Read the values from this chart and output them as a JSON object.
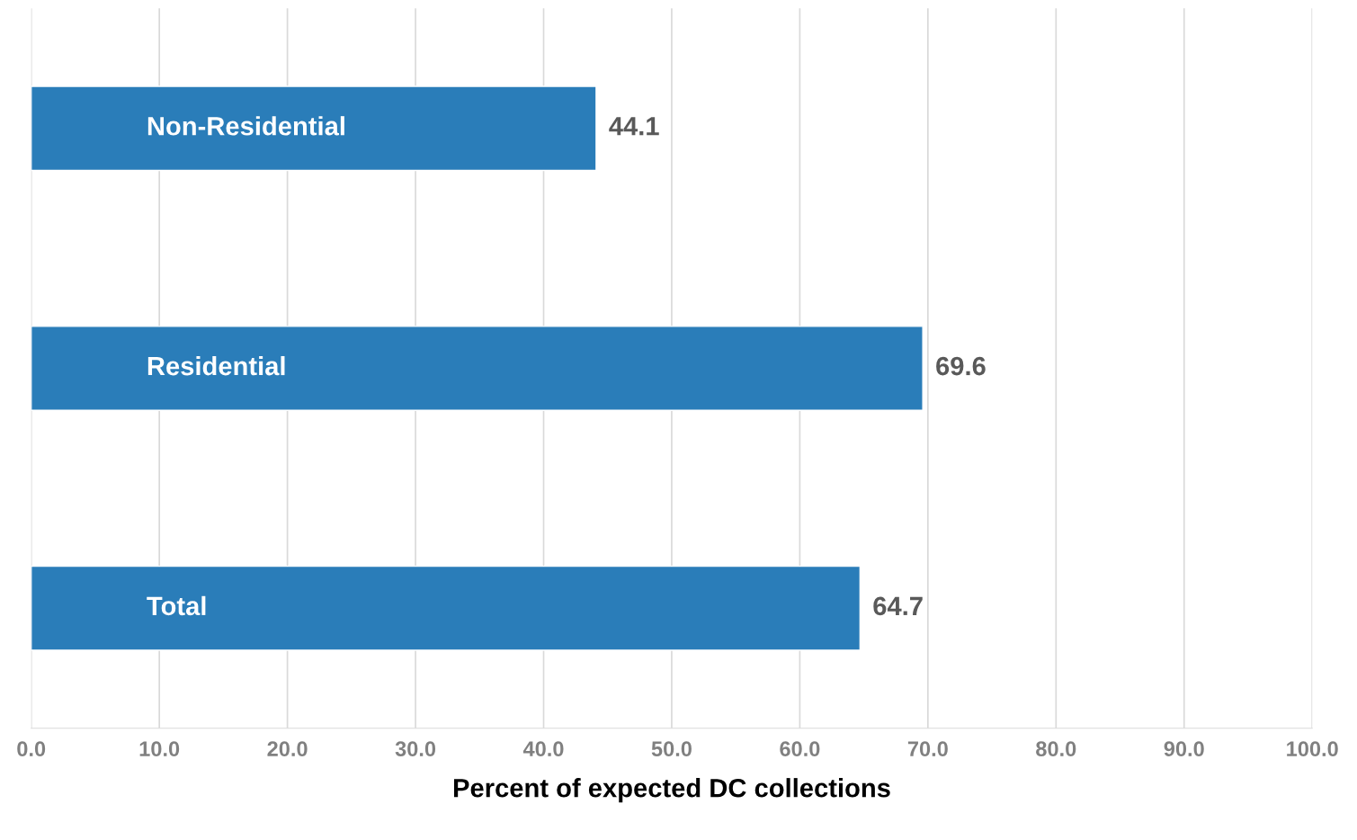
{
  "chart_data": {
    "type": "bar",
    "orientation": "horizontal",
    "categories": [
      "Non-Residential",
      "Residential",
      "Total"
    ],
    "values": [
      44.1,
      69.6,
      64.7
    ],
    "color": "#2a7db9",
    "xlim": [
      0,
      100
    ],
    "xticks": [
      {
        "value": 0,
        "label": "0.0"
      },
      {
        "value": 10,
        "label": "10.0"
      },
      {
        "value": 20,
        "label": "20.0"
      },
      {
        "value": 30,
        "label": "30.0"
      },
      {
        "value": 40,
        "label": "40.0"
      },
      {
        "value": 50,
        "label": "50.0"
      },
      {
        "value": 60,
        "label": "60.0"
      },
      {
        "value": 70,
        "label": "70.0"
      },
      {
        "value": 80,
        "label": "80.0"
      },
      {
        "value": 90,
        "label": "90.0"
      },
      {
        "value": 100,
        "label": "100.0"
      }
    ],
    "xlabel": "Percent of expected DC collections",
    "data_labels": true,
    "grid": "x",
    "legend": false
  }
}
